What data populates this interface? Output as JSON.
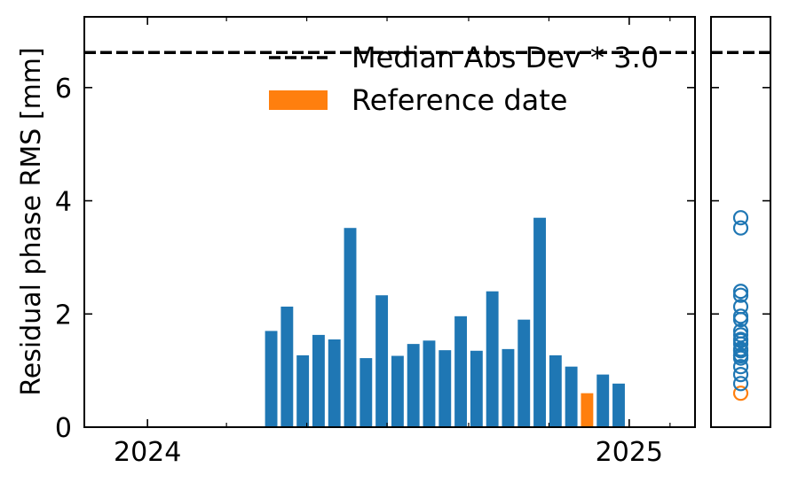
{
  "chart_data": {
    "type": "bar",
    "ylabel": "Residual phase RMS [mm]",
    "xlabel": "",
    "ylim": [
      0,
      7.25
    ],
    "xlim": [
      "2023-11-14",
      "2025-02-20"
    ],
    "x_ticks": [
      {
        "date": "2024-01-01",
        "label": "2024"
      },
      {
        "date": "2025-01-01",
        "label": "2025"
      }
    ],
    "x_minor_ticks": [
      "2024-03-01",
      "2024-05-01",
      "2024-07-01",
      "2024-09-01",
      "2024-11-01",
      "2025-02-01"
    ],
    "y_ticks": [
      0,
      2,
      4,
      6
    ],
    "threshold": {
      "value": 6.62,
      "label": "Median Abs Dev * 3.0"
    },
    "legend": {
      "placement": "top-right",
      "entries": [
        {
          "label": "Median Abs Dev * 3.0",
          "style": "dashed-line",
          "color": "#000000"
        },
        {
          "label": "Reference date",
          "style": "patch",
          "color": "#ff7f0e"
        }
      ]
    },
    "series": [
      {
        "color": "#1f77b4",
        "reference_color": "#ff7f0e",
        "bars": [
          {
            "date": "2024-04-04",
            "value": 1.7
          },
          {
            "date": "2024-04-16",
            "value": 2.13
          },
          {
            "date": "2024-04-28",
            "value": 1.27
          },
          {
            "date": "2024-05-10",
            "value": 1.63
          },
          {
            "date": "2024-05-22",
            "value": 1.55
          },
          {
            "date": "2024-06-03",
            "value": 3.52
          },
          {
            "date": "2024-06-15",
            "value": 1.22
          },
          {
            "date": "2024-06-27",
            "value": 2.33
          },
          {
            "date": "2024-07-09",
            "value": 1.26
          },
          {
            "date": "2024-07-21",
            "value": 1.47
          },
          {
            "date": "2024-08-02",
            "value": 1.53
          },
          {
            "date": "2024-08-14",
            "value": 1.36
          },
          {
            "date": "2024-08-26",
            "value": 1.96
          },
          {
            "date": "2024-09-07",
            "value": 1.35
          },
          {
            "date": "2024-09-19",
            "value": 2.4
          },
          {
            "date": "2024-10-01",
            "value": 1.38
          },
          {
            "date": "2024-10-13",
            "value": 1.9
          },
          {
            "date": "2024-10-25",
            "value": 3.7
          },
          {
            "date": "2024-11-06",
            "value": 1.27
          },
          {
            "date": "2024-11-18",
            "value": 1.07
          },
          {
            "date": "2024-11-30",
            "value": 0.6,
            "reference": true
          },
          {
            "date": "2024-12-12",
            "value": 0.93
          },
          {
            "date": "2024-12-24",
            "value": 0.77
          }
        ]
      }
    ]
  },
  "side_panel": {
    "type": "scatter",
    "marker": "open-circle",
    "ylim": [
      0,
      7.25
    ]
  }
}
